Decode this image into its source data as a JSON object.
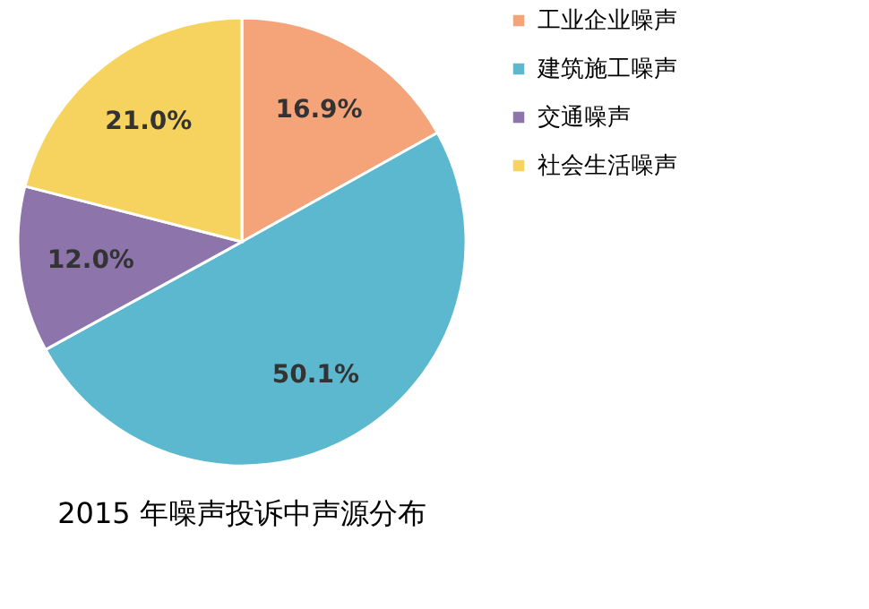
{
  "chart_data": {
    "type": "pie",
    "title": "2015 年噪声投诉中声源分布",
    "categories": [
      "工业企业噪声",
      "建筑施工噪声",
      "交通噪声",
      "社会生活噪声"
    ],
    "values": [
      16.9,
      50.1,
      12.0,
      21.0
    ],
    "value_labels": [
      "16.9%",
      "50.1%",
      "12.0%",
      "21.0%"
    ],
    "colors": [
      "#f4a478",
      "#5bb8cf",
      "#8d74ab",
      "#f6d25f"
    ],
    "legend": "right"
  }
}
